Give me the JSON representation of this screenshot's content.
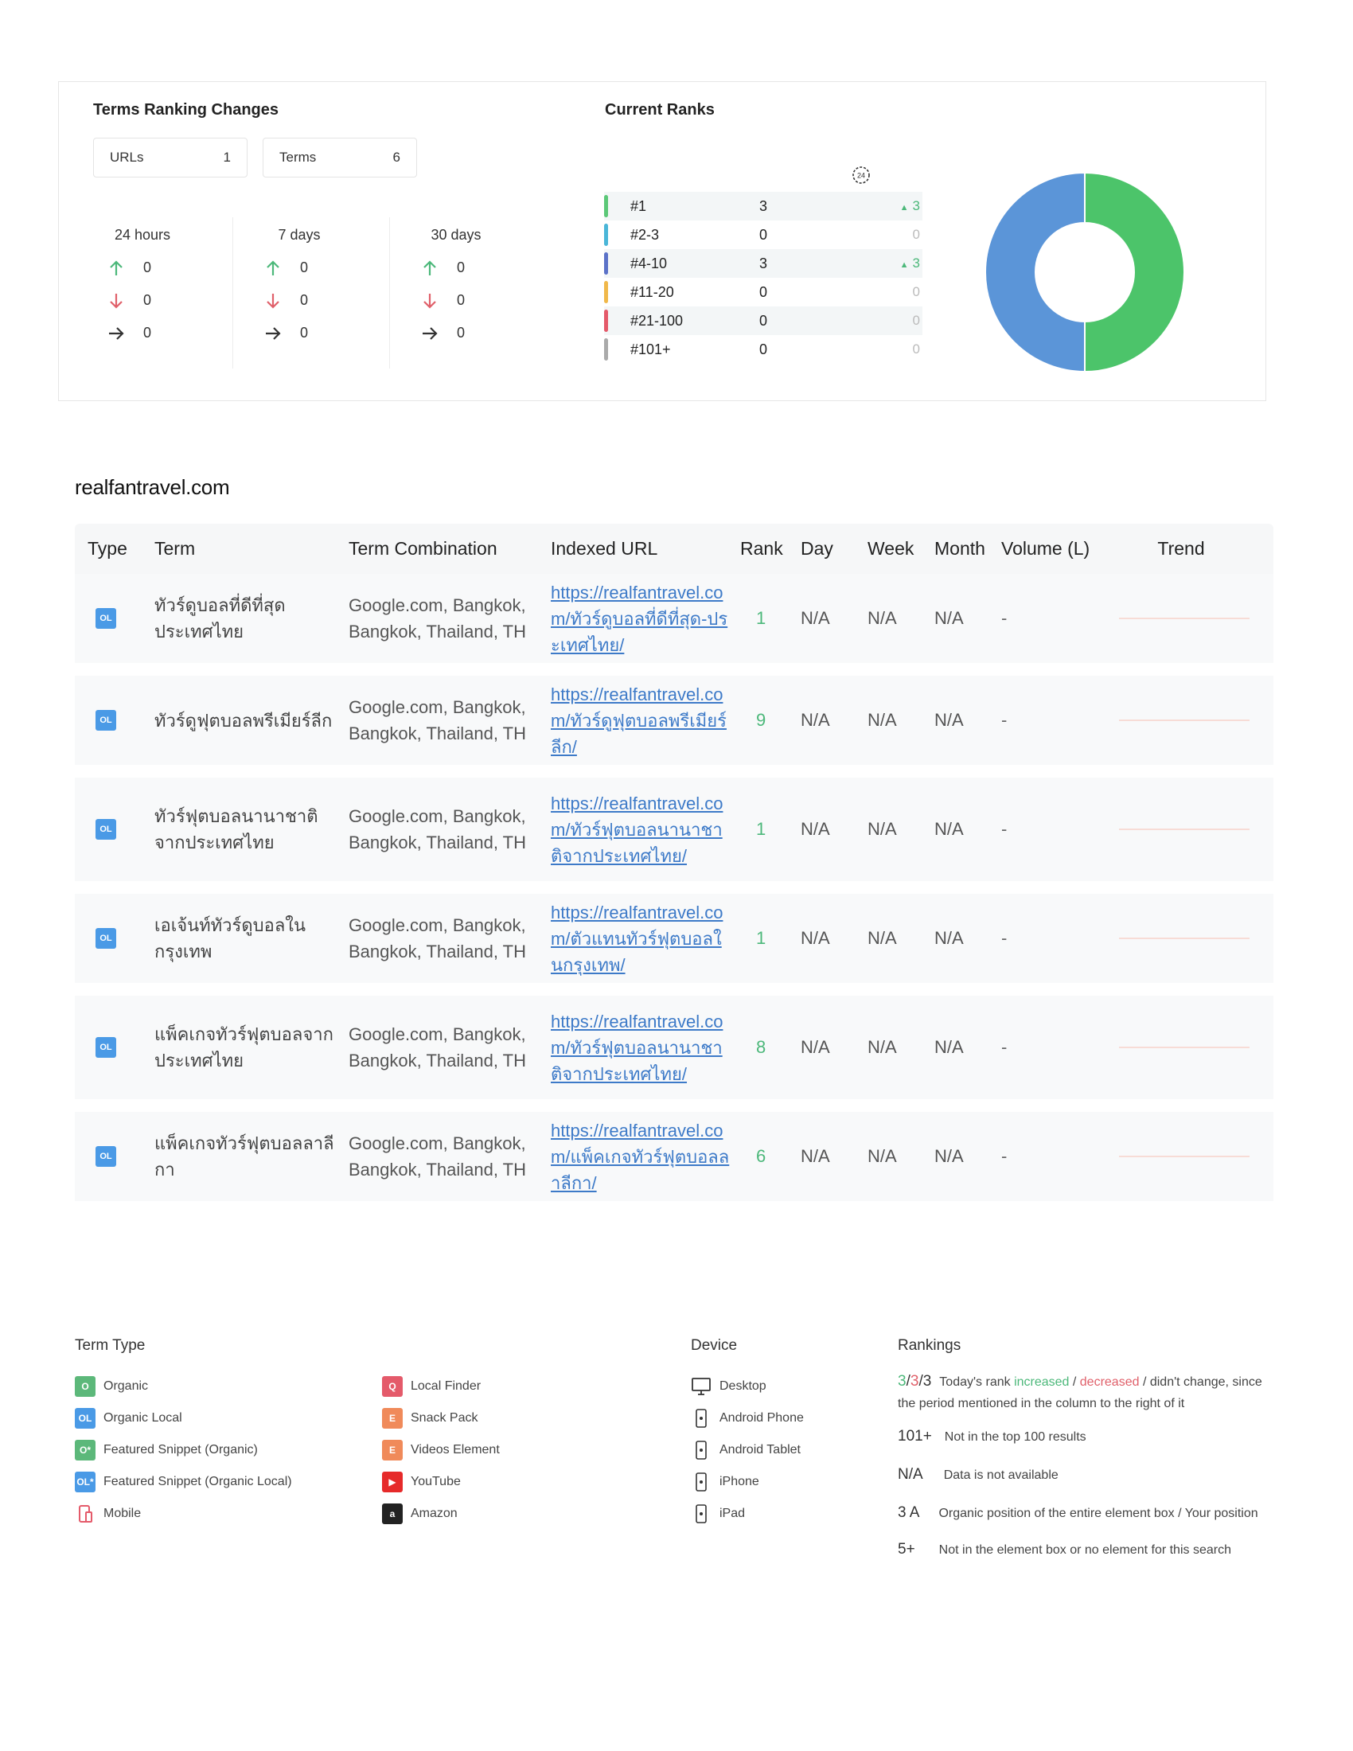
{
  "summary": {
    "ranking_title": "Terms Ranking Changes",
    "urls_label": "URLs",
    "urls_value": "1",
    "terms_label": "Terms",
    "terms_value": "6",
    "periods": [
      {
        "label": "24 hours",
        "up": "0",
        "down": "0",
        "same": "0"
      },
      {
        "label": "7 days",
        "up": "0",
        "down": "0",
        "same": "0"
      },
      {
        "label": "30 days",
        "up": "0",
        "down": "0",
        "same": "0"
      }
    ],
    "current_title": "Current Ranks",
    "clock_label": "24",
    "ranks": [
      {
        "name": "#1",
        "count": "3",
        "change": "3",
        "trend": "up",
        "color": "#5cc878"
      },
      {
        "name": "#2-3",
        "count": "0",
        "change": "0",
        "trend": "none",
        "color": "#4ab6d8"
      },
      {
        "name": "#4-10",
        "count": "3",
        "change": "3",
        "trend": "up",
        "color": "#5b72c8"
      },
      {
        "name": "#11-20",
        "count": "0",
        "change": "0",
        "trend": "none",
        "color": "#f0b84a"
      },
      {
        "name": "#21-100",
        "count": "0",
        "change": "0",
        "trend": "none",
        "color": "#e45a6a"
      },
      {
        "name": "#101+",
        "count": "0",
        "change": "0",
        "trend": "none",
        "color": "#aaaaaa"
      }
    ],
    "donut": {
      "colors": [
        "#4cc46a",
        "#5b95d8"
      ],
      "values": [
        3,
        3
      ]
    }
  },
  "domain": "realfantravel.com",
  "table": {
    "headers": {
      "type": "Type",
      "term": "Term",
      "combo": "Term Combination",
      "url": "Indexed URL",
      "rank": "Rank",
      "day": "Day",
      "week": "Week",
      "month": "Month",
      "volume": "Volume (L)",
      "trend": "Trend"
    },
    "type_badge": "OL",
    "rows": [
      {
        "term": "ทัวร์ดูบอลที่ดีที่สุดประเทศไทย",
        "combo": "Google.com, Bangkok, Bangkok, Thailand, TH",
        "url": "https://realfantravel.com/ทัวร์ดูบอลที่ดีที่สุด-ประเทศไทย/",
        "rank": "1",
        "day": "N/A",
        "week": "N/A",
        "month": "N/A",
        "volume": "-"
      },
      {
        "term": "ทัวร์ดูฟุตบอลพรีเมียร์ลีก",
        "combo": "Google.com, Bangkok, Bangkok, Thailand, TH",
        "url": "https://realfantravel.com/ทัวร์ดูฟุตบอลพรีเมียร์ลีก/",
        "rank": "9",
        "day": "N/A",
        "week": "N/A",
        "month": "N/A",
        "volume": "-"
      },
      {
        "term": "ทัวร์ฟุตบอลนานาชาติจากประเทศไทย",
        "combo": "Google.com, Bangkok, Bangkok, Thailand, TH",
        "url": "https://realfantravel.com/ทัวร์ฟุตบอลนานาชาติจากประเทศไทย/",
        "rank": "1",
        "day": "N/A",
        "week": "N/A",
        "month": "N/A",
        "volume": "-"
      },
      {
        "term": "เอเจ้นท์ทัวร์ดูบอลในกรุงเทพ",
        "combo": "Google.com, Bangkok, Bangkok, Thailand, TH",
        "url": "https://realfantravel.com/ตัวแทนทัวร์ฟุตบอลในกรุงเทพ/",
        "rank": "1",
        "day": "N/A",
        "week": "N/A",
        "month": "N/A",
        "volume": "-"
      },
      {
        "term": "แพ็คเกจทัวร์ฟุตบอลจากประเทศไทย",
        "combo": "Google.com, Bangkok, Bangkok, Thailand, TH",
        "url": "https://realfantravel.com/ทัวร์ฟุตบอลนานาชาติจากประเทศไทย/",
        "rank": "8",
        "day": "N/A",
        "week": "N/A",
        "month": "N/A",
        "volume": "-"
      },
      {
        "term": "แพ็คเกจทัวร์ฟุตบอลลาลีกา",
        "combo": "Google.com, Bangkok, Bangkok, Thailand, TH",
        "url": "https://realfantravel.com/แพ็คเกจทัวร์ฟุตบอลลาลีกา/",
        "rank": "6",
        "day": "N/A",
        "week": "N/A",
        "month": "N/A",
        "volume": "-"
      }
    ]
  },
  "legend": {
    "term_type_title": "Term Type",
    "term_types_col1": [
      {
        "label": "Organic",
        "badge": "O",
        "color": "#5cb87a"
      },
      {
        "label": "Organic Local",
        "badge": "OL",
        "color": "#4a9ae6"
      },
      {
        "label": "Featured Snippet (Organic)",
        "badge": "O*",
        "color": "#5cb87a"
      },
      {
        "label": "Featured Snippet (Organic Local)",
        "badge": "OL*",
        "color": "#4a9ae6"
      },
      {
        "label": "Mobile",
        "badge": "",
        "color": "#e45a6a"
      }
    ],
    "term_types_col2": [
      {
        "label": "Local Finder",
        "badge": "Q",
        "color": "#e45a6a"
      },
      {
        "label": "Snack Pack",
        "badge": "E",
        "color": "#f08a5a"
      },
      {
        "label": "Videos Element",
        "badge": "E",
        "color": "#f08a5a"
      },
      {
        "label": "YouTube",
        "badge": "▶",
        "color": "#e62a2a"
      },
      {
        "label": "Amazon",
        "badge": "a",
        "color": "#222222"
      }
    ],
    "device_title": "Device",
    "devices": [
      {
        "label": "Desktop",
        "icon": "desktop-icon"
      },
      {
        "label": "Android Phone",
        "icon": "android-phone-icon"
      },
      {
        "label": "Android Tablet",
        "icon": "android-tablet-icon"
      },
      {
        "label": "iPhone",
        "icon": "iphone-icon"
      },
      {
        "label": "iPad",
        "icon": "ipad-icon"
      }
    ],
    "rankings_title": "Rankings",
    "rk1_a": "3",
    "rk1_b": "3",
    "rk1_c": "3",
    "rk1_text_1": "Today's rank ",
    "rk1_increased": "increased",
    "rk1_sep": " / ",
    "rk1_decreased": "decreased",
    "rk1_text_2": " / didn't change, since the period mentioned in the column to the right of it",
    "rk2_key": "101+",
    "rk2_text": "Not in the top 100 results",
    "rk3_key": "N/A",
    "rk3_text": "Data is not available",
    "rk4_key": "3 A",
    "rk4_text": "Organic position of the entire element box / Your position",
    "rk5_key": "5+",
    "rk5_text": "Not in the element box or no element for this search"
  }
}
